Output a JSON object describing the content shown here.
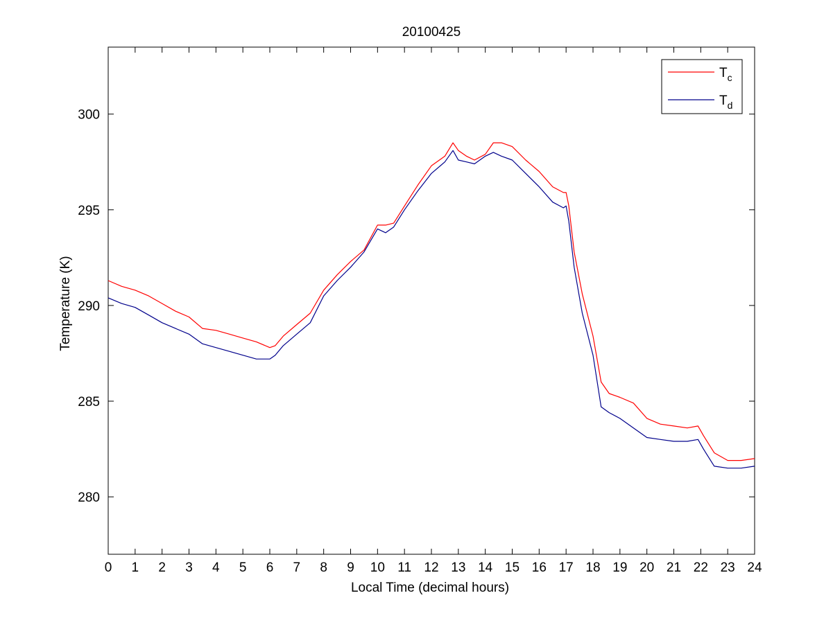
{
  "chart_data": {
    "type": "line",
    "title": "20100425",
    "xlabel": "Local Time (decimal hours)",
    "ylabel": "Temperature (K)",
    "xlim": [
      0,
      24
    ],
    "ylim": [
      277,
      303.5
    ],
    "x_ticks": [
      0,
      1,
      2,
      3,
      4,
      5,
      6,
      7,
      8,
      9,
      10,
      11,
      12,
      13,
      14,
      15,
      16,
      17,
      18,
      19,
      20,
      21,
      22,
      23,
      24
    ],
    "y_ticks": [
      280,
      285,
      290,
      295,
      300
    ],
    "grid": false,
    "legend_position": "top-right",
    "series": [
      {
        "name": "Tc",
        "legend_main": "T",
        "legend_sub": "c",
        "color": "#ff0000",
        "x": [
          0,
          0.5,
          1,
          1.5,
          2,
          2.5,
          3,
          3.5,
          4,
          4.5,
          5,
          5.5,
          6,
          6.2,
          6.5,
          7,
          7.5,
          8,
          8.5,
          9,
          9.5,
          10,
          10.3,
          10.6,
          11,
          11.5,
          12,
          12.5,
          12.8,
          13,
          13.3,
          13.6,
          14,
          14.3,
          14.6,
          15,
          15.5,
          16,
          16.5,
          16.9,
          17,
          17.1,
          17.3,
          17.6,
          18,
          18.3,
          18.6,
          19,
          19.5,
          20,
          20.5,
          21,
          21.5,
          21.9,
          22.1,
          22.5,
          23,
          23.5,
          24
        ],
        "y": [
          291.3,
          291.0,
          290.8,
          290.5,
          290.1,
          289.7,
          289.4,
          288.8,
          288.7,
          288.5,
          288.3,
          288.1,
          287.8,
          287.9,
          288.4,
          289.0,
          289.6,
          290.8,
          291.6,
          292.3,
          292.9,
          294.2,
          294.2,
          294.3,
          295.2,
          296.3,
          297.3,
          297.8,
          298.5,
          298.1,
          297.8,
          297.6,
          297.9,
          298.5,
          298.5,
          298.3,
          297.6,
          297.0,
          296.2,
          295.9,
          295.9,
          295.2,
          292.8,
          290.6,
          288.4,
          286.0,
          285.4,
          285.2,
          284.9,
          284.1,
          283.8,
          283.7,
          283.6,
          283.7,
          283.2,
          282.3,
          281.9,
          281.9,
          282.0
        ]
      },
      {
        "name": "Td",
        "legend_main": "T",
        "legend_sub": "d",
        "color": "#00008b",
        "x": [
          0,
          0.5,
          1,
          1.5,
          2,
          2.5,
          3,
          3.5,
          4,
          4.5,
          5,
          5.5,
          6,
          6.2,
          6.5,
          7,
          7.5,
          8,
          8.5,
          9,
          9.5,
          10,
          10.3,
          10.6,
          11,
          11.5,
          12,
          12.5,
          12.8,
          13,
          13.3,
          13.6,
          14,
          14.3,
          14.6,
          15,
          15.5,
          16,
          16.5,
          16.9,
          17,
          17.1,
          17.3,
          17.6,
          18,
          18.3,
          18.6,
          19,
          19.5,
          20,
          20.5,
          21,
          21.5,
          21.9,
          22.1,
          22.5,
          23,
          23.5,
          24
        ],
        "y": [
          290.4,
          290.1,
          289.9,
          289.5,
          289.1,
          288.8,
          288.5,
          288.0,
          287.8,
          287.6,
          287.4,
          287.2,
          287.2,
          287.4,
          287.9,
          288.5,
          289.1,
          290.5,
          291.3,
          292.0,
          292.8,
          294.0,
          293.8,
          294.1,
          295.0,
          296.0,
          296.9,
          297.5,
          298.1,
          297.6,
          297.5,
          297.4,
          297.8,
          298.0,
          297.8,
          297.6,
          296.9,
          296.2,
          295.4,
          295.1,
          295.2,
          294.4,
          292.0,
          289.6,
          287.4,
          284.7,
          284.4,
          284.1,
          283.6,
          283.1,
          283.0,
          282.9,
          282.9,
          283.0,
          282.5,
          281.6,
          281.5,
          281.5,
          281.6
        ]
      }
    ]
  }
}
